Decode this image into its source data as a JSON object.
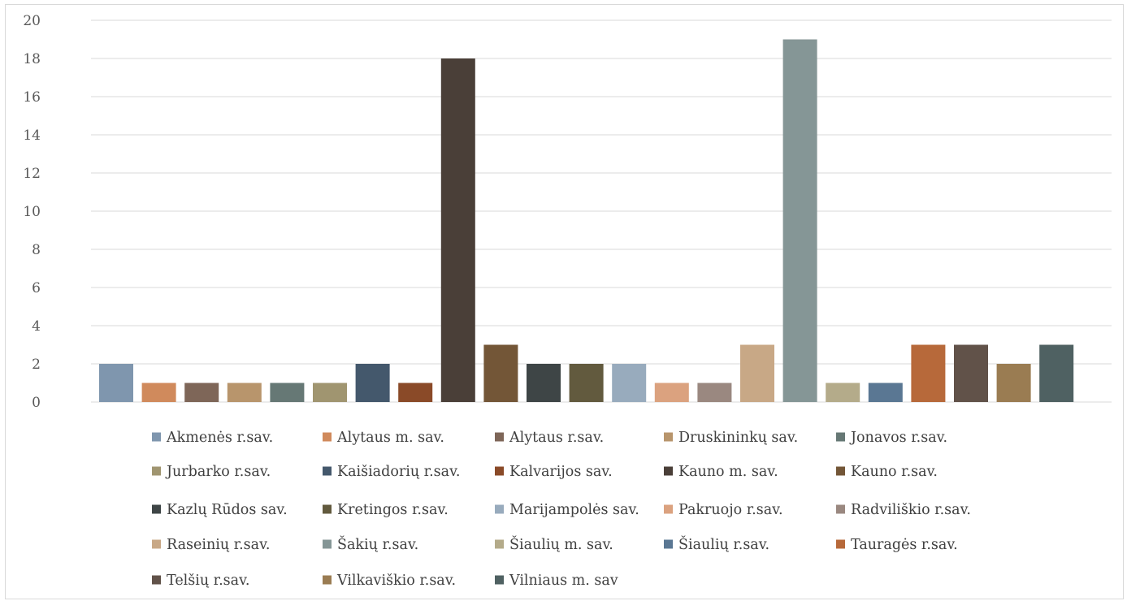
{
  "chart_data": {
    "type": "bar",
    "ylim": [
      0,
      20
    ],
    "yticks": [
      "0",
      "2",
      "4",
      "6",
      "8",
      "10",
      "12",
      "14",
      "16",
      "18",
      "20"
    ],
    "grid": true,
    "legend_position": "bottom",
    "series": [
      {
        "name": "Akmenės r.sav.",
        "value": 2,
        "color": "#7f96ae"
      },
      {
        "name": "Alytaus m. sav.",
        "value": 1,
        "color": "#d08a5c"
      },
      {
        "name": "Alytaus r.sav.",
        "value": 1,
        "color": "#7e6658"
      },
      {
        "name": "Druskininkų sav.",
        "value": 1,
        "color": "#b8956c"
      },
      {
        "name": "Jonavos r.sav.",
        "value": 1,
        "color": "#667875"
      },
      {
        "name": "Jurbarko r.sav.",
        "value": 1,
        "color": "#a09570"
      },
      {
        "name": "Kaišiadorių r.sav.",
        "value": 2,
        "color": "#44586c"
      },
      {
        "name": "Kalvarijos sav.",
        "value": 1,
        "color": "#8a4a28"
      },
      {
        "name": "Kauno m. sav.",
        "value": 18,
        "color": "#4a3f38"
      },
      {
        "name": "Kauno r.sav.",
        "value": 3,
        "color": "#735637"
      },
      {
        "name": "Kazlų Rūdos sav.",
        "value": 2,
        "color": "#3e4546"
      },
      {
        "name": "Kretingos r.sav.",
        "value": 2,
        "color": "#625a3e"
      },
      {
        "name": "Marijampolės sav.",
        "value": 2,
        "color": "#98abbd"
      },
      {
        "name": "Pakruojo r.sav.",
        "value": 1,
        "color": "#dba27f"
      },
      {
        "name": "Radviliškio r.sav.",
        "value": 1,
        "color": "#9a8880"
      },
      {
        "name": "Raseinių r.sav.",
        "value": 3,
        "color": "#c8a886"
      },
      {
        "name": "Šakių r.sav.",
        "value": 19,
        "color": "#859696"
      },
      {
        "name": "Šiaulių m. sav.",
        "value": 1,
        "color": "#b4ab8a"
      },
      {
        "name": "Šiaulių r.sav.",
        "value": 1,
        "color": "#5a7793"
      },
      {
        "name": "Tauragės r.sav.",
        "value": 3,
        "color": "#b7693a"
      },
      {
        "name": "Telšių r.sav.",
        "value": 3,
        "color": "#615249"
      },
      {
        "name": "Vilkaviškio r.sav.",
        "value": 2,
        "color": "#9a7c52"
      },
      {
        "name": "Vilniaus m. sav",
        "value": 3,
        "color": "#4f6162"
      }
    ]
  }
}
